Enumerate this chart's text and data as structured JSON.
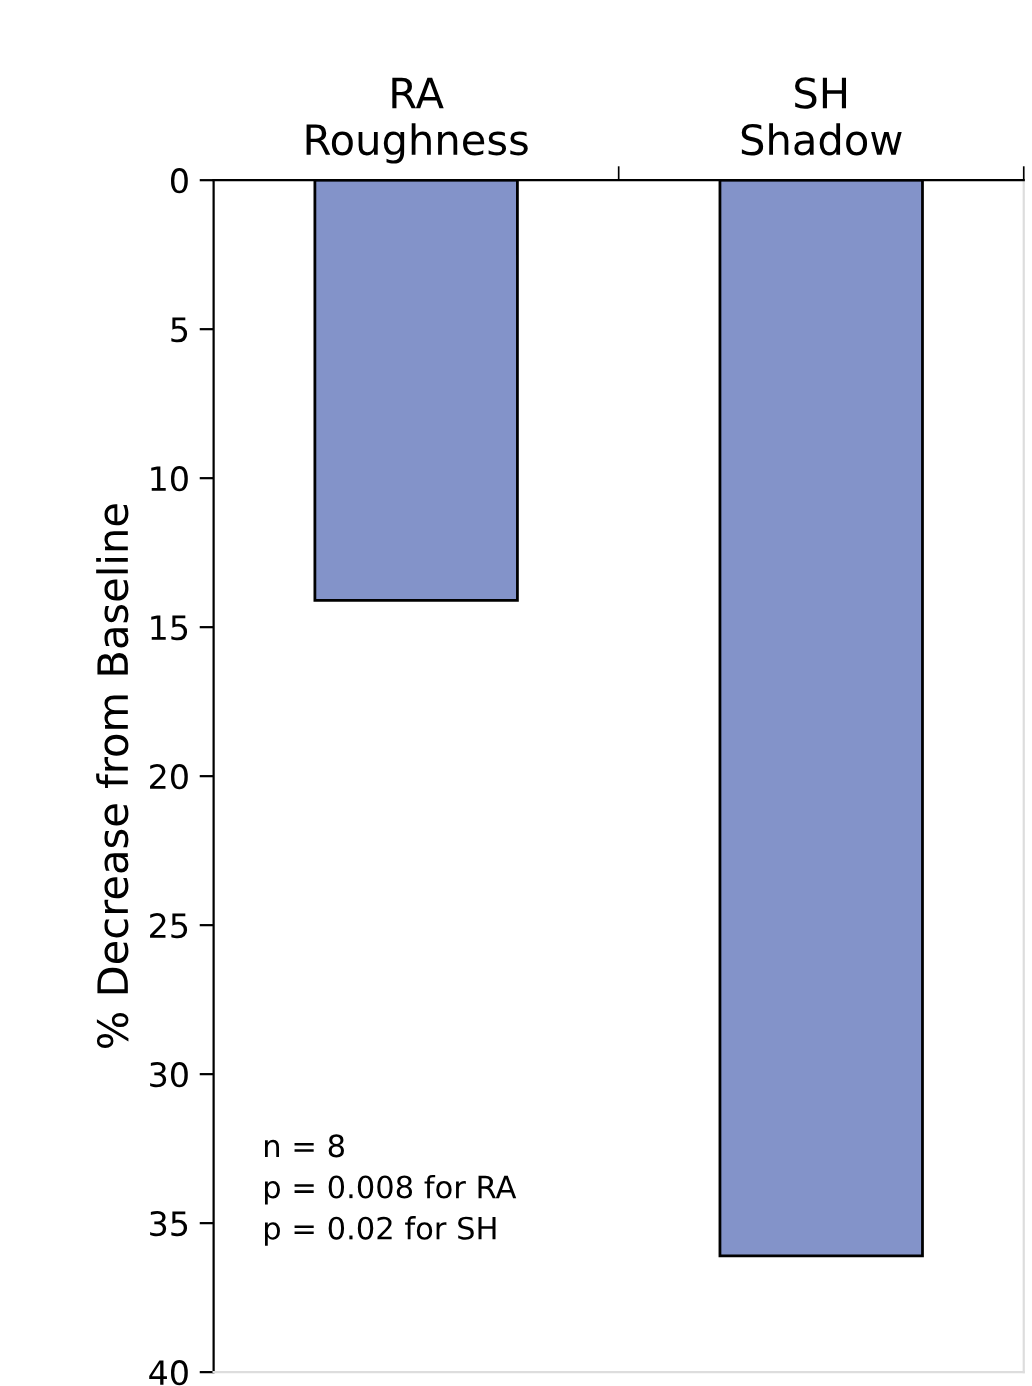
{
  "chart_data": {
    "type": "bar",
    "ylabel": "% Decrease from Baseline",
    "categories": [
      "RA\nRoughness",
      "SH\nShadow"
    ],
    "values": [
      14.1,
      36.1
    ],
    "color": "#8393c9",
    "ylim": [
      40,
      0
    ],
    "yticks": [
      0,
      5,
      10,
      15,
      20,
      25,
      30,
      35,
      40
    ],
    "grid": false,
    "annotations": [
      "n = 8\np = 0.008 for RA\np = 0.02 for SH"
    ]
  }
}
